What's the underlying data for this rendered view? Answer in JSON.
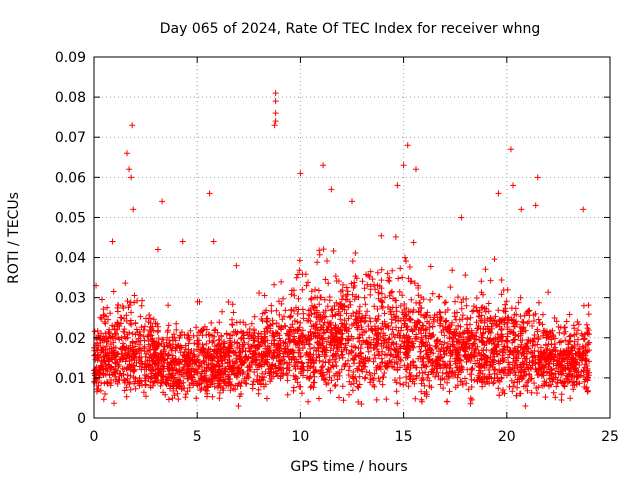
{
  "chart_data": {
    "type": "scatter",
    "title": "Day 065 of 2024, Rate Of TEC Index for receiver whng",
    "xlabel": "GPS time / hours",
    "ylabel": "ROTI / TECUs",
    "xlim": [
      0,
      25
    ],
    "ylim": [
      0,
      0.09
    ],
    "x_ticks": [
      "0",
      "5",
      "10",
      "15",
      "20",
      "25"
    ],
    "y_ticks": [
      "0",
      "0.01",
      "0.02",
      "0.03",
      "0.04",
      "0.05",
      "0.06",
      "0.07",
      "0.08",
      "0.09"
    ],
    "grid": true,
    "legend": "none",
    "marker": "+",
    "color": "#ff0000",
    "x_data_range": [
      0,
      24
    ],
    "envelope": {
      "hours": [
        0,
        1,
        2,
        3,
        4,
        5,
        6,
        7,
        8,
        9,
        10,
        11,
        12,
        13,
        14,
        15,
        16,
        17,
        18,
        19,
        20,
        21,
        22,
        23,
        24
      ],
      "typical_low": [
        0.008,
        0.008,
        0.008,
        0.008,
        0.007,
        0.007,
        0.008,
        0.008,
        0.009,
        0.009,
        0.009,
        0.009,
        0.009,
        0.009,
        0.009,
        0.009,
        0.009,
        0.009,
        0.009,
        0.009,
        0.009,
        0.008,
        0.008,
        0.008,
        0.008
      ],
      "typical_high": [
        0.024,
        0.028,
        0.03,
        0.024,
        0.022,
        0.024,
        0.024,
        0.024,
        0.026,
        0.03,
        0.034,
        0.036,
        0.036,
        0.036,
        0.038,
        0.038,
        0.032,
        0.03,
        0.03,
        0.032,
        0.032,
        0.03,
        0.026,
        0.024,
        0.024
      ]
    },
    "notable_points": [
      {
        "x": 8.8,
        "y": 0.081
      },
      {
        "x": 8.8,
        "y": 0.079
      },
      {
        "x": 8.8,
        "y": 0.076
      },
      {
        "x": 8.8,
        "y": 0.074
      },
      {
        "x": 8.75,
        "y": 0.073
      },
      {
        "x": 1.85,
        "y": 0.073
      },
      {
        "x": 15.2,
        "y": 0.068
      },
      {
        "x": 20.2,
        "y": 0.067
      },
      {
        "x": 1.6,
        "y": 0.066
      },
      {
        "x": 11.1,
        "y": 0.063
      },
      {
        "x": 15.0,
        "y": 0.063
      },
      {
        "x": 15.6,
        "y": 0.062
      },
      {
        "x": 1.7,
        "y": 0.062
      },
      {
        "x": 10.0,
        "y": 0.061
      },
      {
        "x": 21.5,
        "y": 0.06
      },
      {
        "x": 1.8,
        "y": 0.06
      },
      {
        "x": 20.3,
        "y": 0.058
      },
      {
        "x": 14.7,
        "y": 0.058
      },
      {
        "x": 11.5,
        "y": 0.057
      },
      {
        "x": 5.6,
        "y": 0.056
      },
      {
        "x": 19.6,
        "y": 0.056
      },
      {
        "x": 3.3,
        "y": 0.054
      },
      {
        "x": 12.5,
        "y": 0.054
      },
      {
        "x": 21.4,
        "y": 0.053
      },
      {
        "x": 23.7,
        "y": 0.052
      },
      {
        "x": 1.9,
        "y": 0.052
      },
      {
        "x": 20.7,
        "y": 0.052
      },
      {
        "x": 17.8,
        "y": 0.05
      },
      {
        "x": 5.8,
        "y": 0.044
      },
      {
        "x": 4.3,
        "y": 0.044
      },
      {
        "x": 3.1,
        "y": 0.042
      },
      {
        "x": 0.9,
        "y": 0.044
      },
      {
        "x": 6.9,
        "y": 0.038
      },
      {
        "x": 10.3,
        "y": 0.033
      },
      {
        "x": 12.8,
        "y": 0.004
      },
      {
        "x": 20.9,
        "y": 0.003
      },
      {
        "x": 7.0,
        "y": 0.003
      },
      {
        "x": 0.1,
        "y": 0.033
      }
    ]
  }
}
